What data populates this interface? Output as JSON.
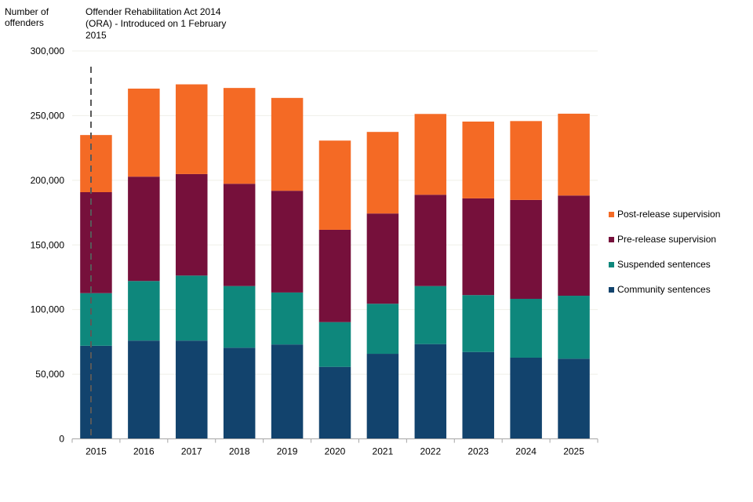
{
  "chart_data": {
    "type": "bar",
    "stacked": true,
    "title": "",
    "xlabel": "",
    "ylabel": "Number of offenders",
    "ylim": [
      0,
      300000
    ],
    "yticks": [
      0,
      50000,
      100000,
      150000,
      200000,
      250000,
      300000
    ],
    "ytick_labels": [
      "0",
      "50,000",
      "100,000",
      "150,000",
      "200,000",
      "250,000",
      "300,000"
    ],
    "grid": true,
    "legend_position": "right",
    "categories": [
      "2015",
      "2016",
      "2017",
      "2018",
      "2019",
      "2020",
      "2021",
      "2022",
      "2023",
      "2024",
      "2025"
    ],
    "series": [
      {
        "name": "Community sentences",
        "color": "#12436D",
        "values": [
          72000,
          76000,
          76000,
          70500,
          73000,
          55700,
          65800,
          73300,
          67200,
          62800,
          62000
        ]
      },
      {
        "name": "Suspended sentences",
        "color": "#0E877C",
        "values": [
          40700,
          46100,
          50300,
          47700,
          40200,
          34600,
          38700,
          44900,
          44000,
          45500,
          48700
        ]
      },
      {
        "name": "Pre-release supervision",
        "color": "#76103B",
        "values": [
          78100,
          80700,
          78500,
          79100,
          78700,
          71400,
          69800,
          70600,
          74800,
          76500,
          77500
        ]
      },
      {
        "name": "Post-release supervision",
        "color": "#F46A25",
        "values": [
          44200,
          68100,
          69400,
          74100,
          71800,
          69000,
          63100,
          62500,
          59400,
          61000,
          63300
        ]
      }
    ],
    "legend_order": [
      "Post-release supervision",
      "Pre-release supervision",
      "Suspended sentences",
      "Community sentences"
    ],
    "annotation": {
      "text": "Offender Rehabilitation Act 2014 (ORA) - Introduced on 1 February 2015",
      "lines": [
        "Offender Rehabilitation Act 2014",
        "(ORA) - Introduced on 1 February",
        "2015"
      ],
      "at_category": "2015",
      "style": "dashed-vertical-line"
    }
  },
  "labels": {
    "ylabel_line1": "Number of",
    "ylabel_line2": "offenders"
  }
}
